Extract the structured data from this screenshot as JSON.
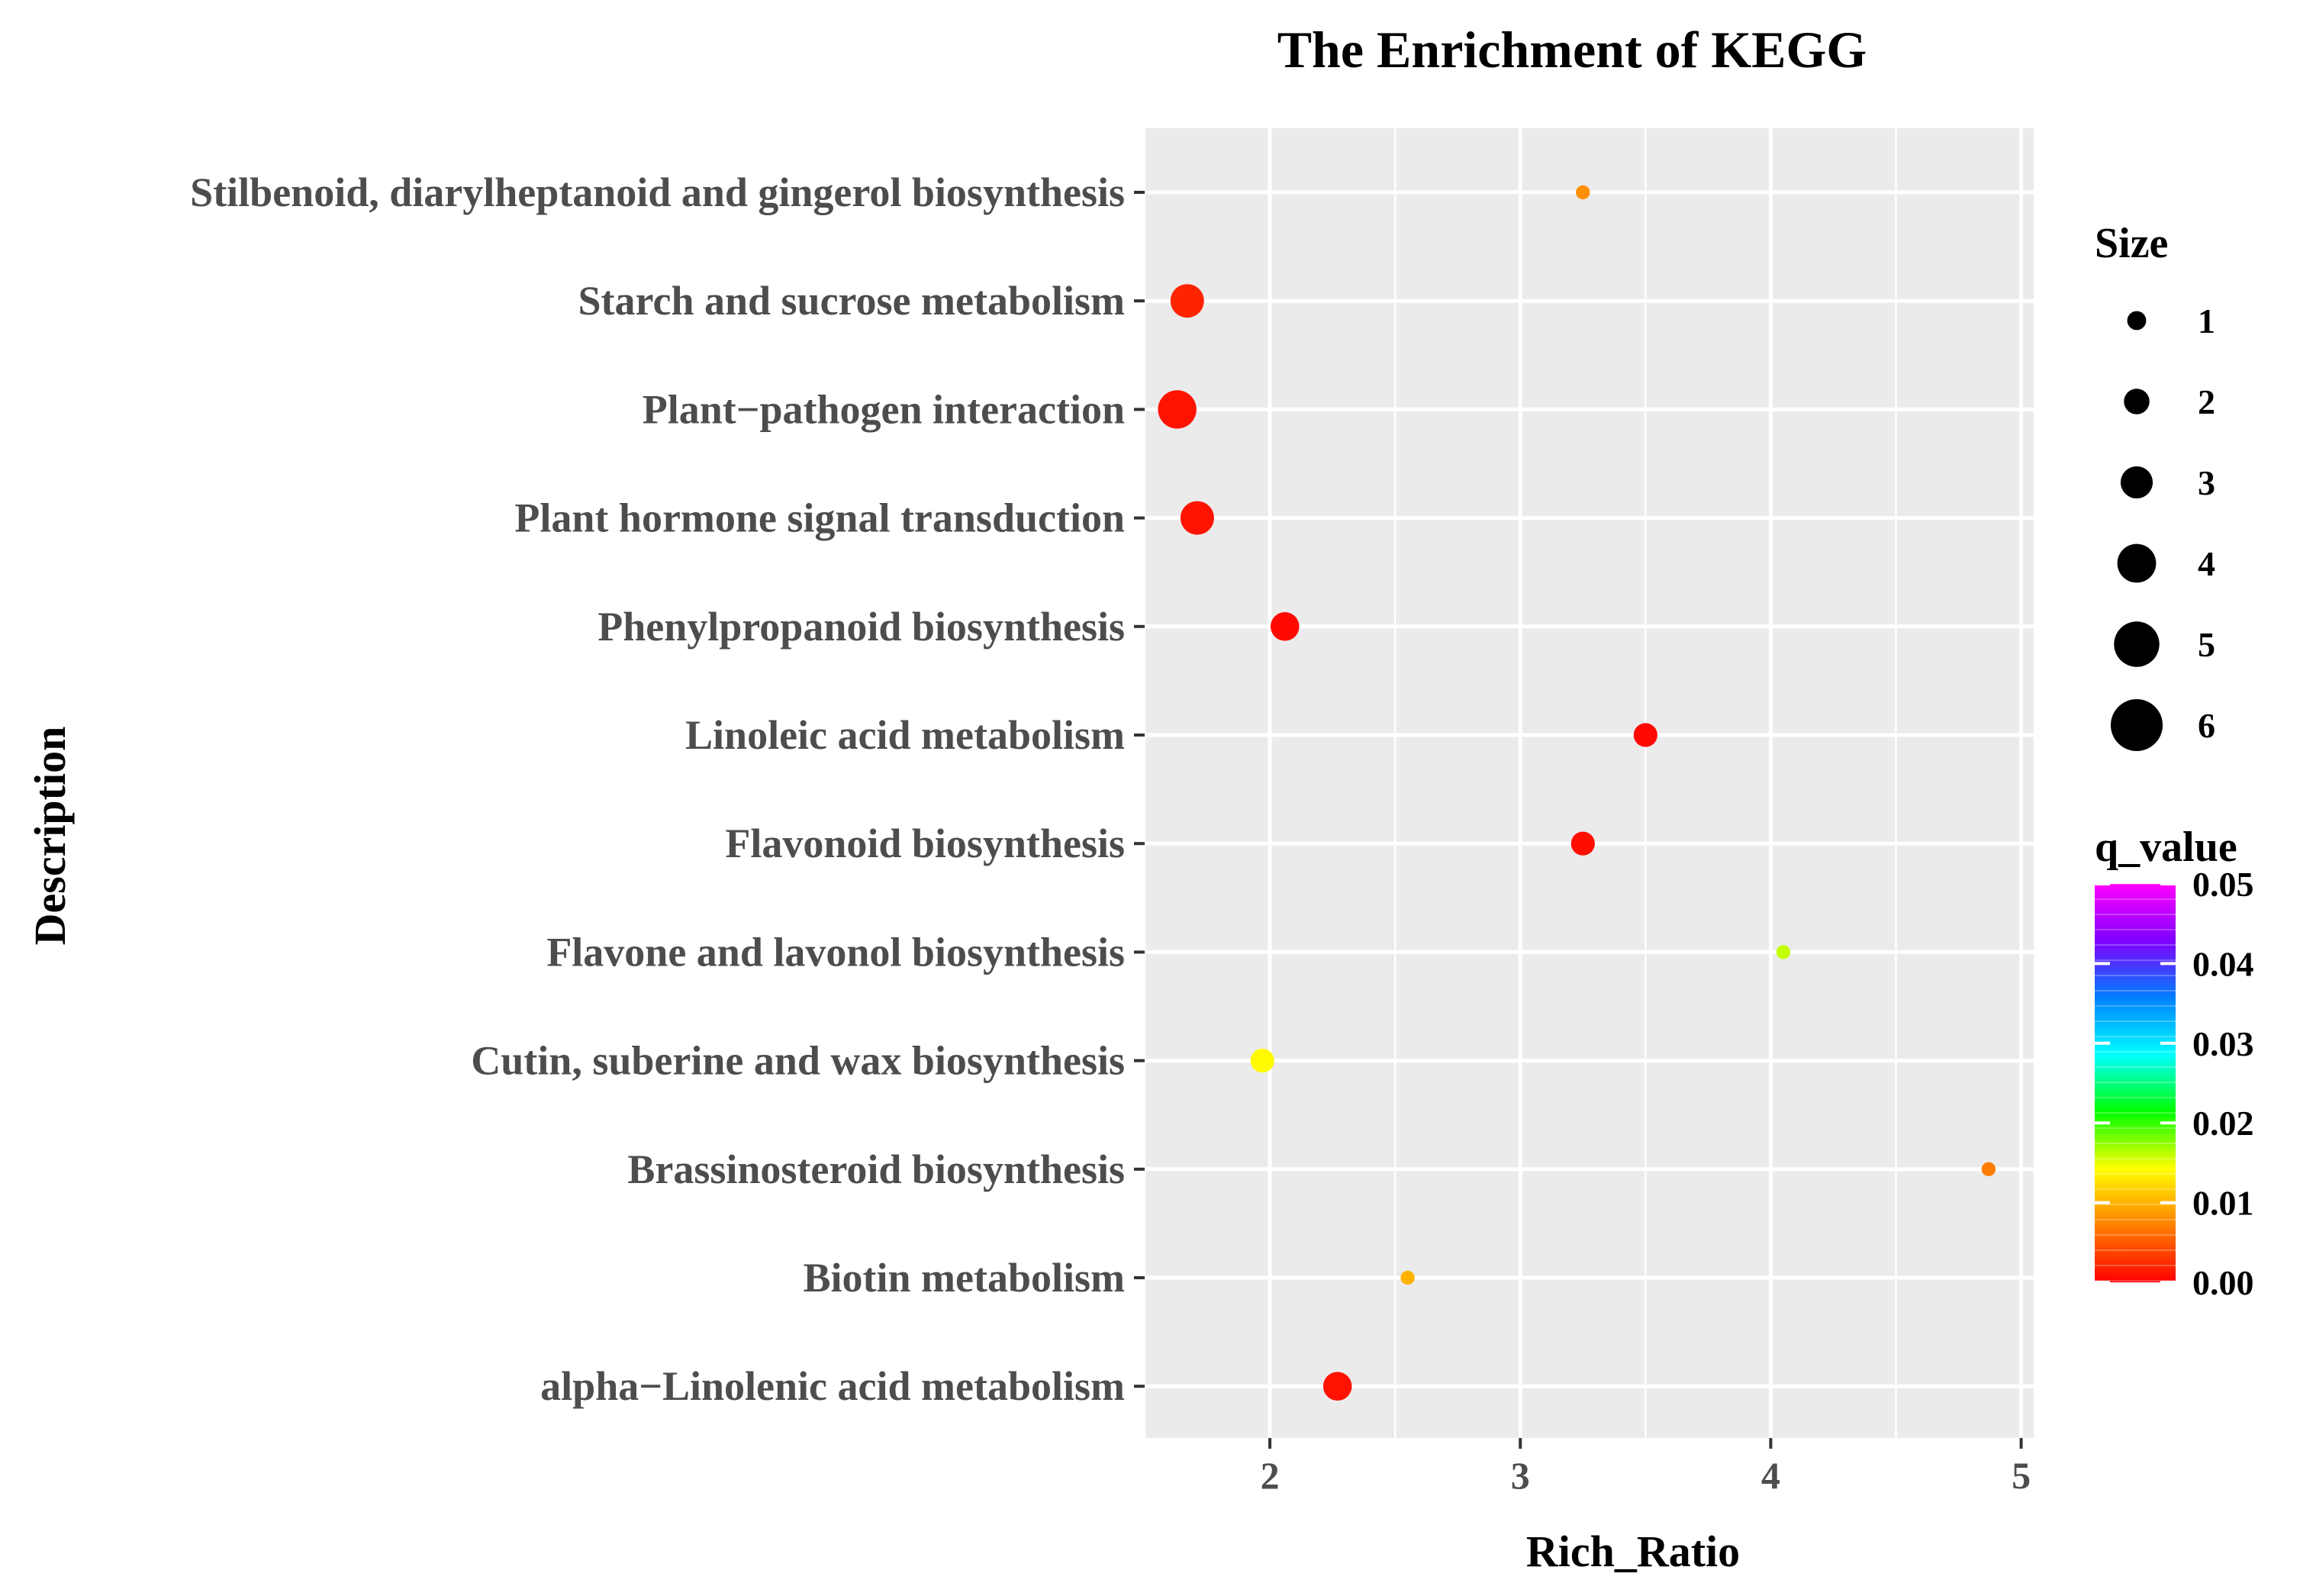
{
  "chart_data": {
    "type": "scatter",
    "title": "The Enrichment of KEGG",
    "xlabel": "Rich_Ratio",
    "ylabel": "Description",
    "xlim": [
      1.5,
      5.05
    ],
    "xticks": [
      2,
      3,
      4,
      5
    ],
    "grid": true,
    "categories": [
      "Stilbenoid, diarylheptanoid and gingerol biosynthesis",
      "Starch and sucrose metabolism",
      "Plant−pathogen interaction",
      "Plant hormone signal transduction",
      "Phenylpropanoid biosynthesis",
      "Linoleic acid metabolism",
      "Flavonoid biosynthesis",
      "Flavone and lavonol biosynthesis",
      "Cutin, suberine and wax biosynthesis",
      "Brassinosteroid biosynthesis",
      "Biotin metabolism",
      "alpha−Linolenic acid metabolism"
    ],
    "points": [
      {
        "category": "Stilbenoid, diarylheptanoid and gingerol biosynthesis",
        "rich_ratio": 3.25,
        "size": 1,
        "q_value": 0.008
      },
      {
        "category": "Starch and sucrose metabolism",
        "rich_ratio": 1.67,
        "size": 5,
        "q_value": 0.002
      },
      {
        "category": "Plant−pathogen interaction",
        "rich_ratio": 1.63,
        "size": 6,
        "q_value": 0.001
      },
      {
        "category": "Plant hormone signal transduction",
        "rich_ratio": 1.71,
        "size": 5,
        "q_value": 0.001
      },
      {
        "category": "Phenylpropanoid biosynthesis",
        "rich_ratio": 2.06,
        "size": 4,
        "q_value": 0.0005
      },
      {
        "category": "Linoleic acid metabolism",
        "rich_ratio": 3.5,
        "size": 3,
        "q_value": 0.0005
      },
      {
        "category": "Flavonoid biosynthesis",
        "rich_ratio": 3.25,
        "size": 3,
        "q_value": 0.0008
      },
      {
        "category": "Flavone and lavonol biosynthesis",
        "rich_ratio": 4.05,
        "size": 1,
        "q_value": 0.016
      },
      {
        "category": "Cutin, suberine and wax biosynthesis",
        "rich_ratio": 1.97,
        "size": 3,
        "q_value": 0.014
      },
      {
        "category": "Brassinosteroid biosynthesis",
        "rich_ratio": 4.87,
        "size": 1,
        "q_value": 0.007
      },
      {
        "category": "Biotin metabolism",
        "rich_ratio": 2.55,
        "size": 1,
        "q_value": 0.01
      },
      {
        "category": "alpha−Linolenic acid metabolism",
        "rich_ratio": 2.27,
        "size": 4,
        "q_value": 0.001
      }
    ],
    "size_legend": {
      "title": "Size",
      "values": [
        1,
        2,
        3,
        4,
        5,
        6
      ],
      "labels": [
        "1",
        "2",
        "3",
        "4",
        "5",
        "6"
      ]
    },
    "color_legend": {
      "title": "q_value",
      "range": [
        0.0,
        0.05
      ],
      "tick_values": [
        0.05,
        0.04,
        0.03,
        0.02,
        0.01,
        0.0
      ],
      "tick_labels": [
        "0.05",
        "0.04",
        "0.03",
        "0.02",
        "0.01",
        "0.00"
      ],
      "stops": [
        "#ff0000",
        "#ff8000",
        "#ffff00",
        "#00ff00",
        "#00ffff",
        "#0080ff",
        "#8000ff",
        "#ff00ff"
      ]
    },
    "legend_placement": "right",
    "colors": {
      "panel_background": "#ebebeb",
      "grid": "#ffffff",
      "axis_text": "#4d4d4d",
      "tick": "#333333"
    }
  }
}
